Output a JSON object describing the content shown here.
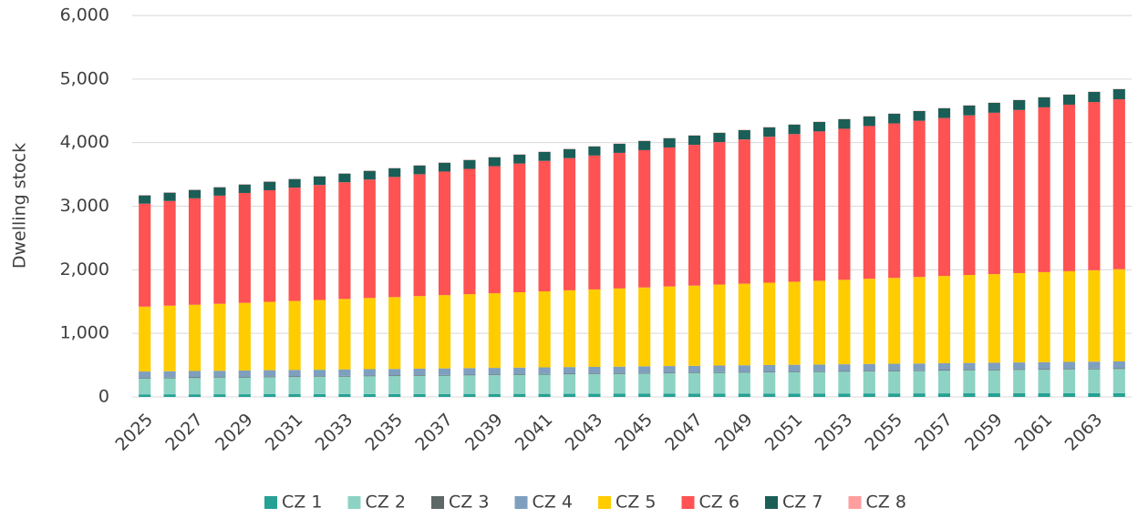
{
  "chart_data": {
    "type": "stacked_bar",
    "ylabel": "Dwelling stock",
    "categories": [
      "2025",
      null,
      "2027",
      null,
      "2029",
      null,
      "2031",
      null,
      "2033",
      null,
      "2035",
      null,
      "2037",
      null,
      "2039",
      null,
      "2041",
      null,
      "2043",
      null,
      "2045",
      null,
      "2047",
      null,
      "2049",
      null,
      "2051",
      null,
      "2053",
      null,
      "2055",
      null,
      "2057",
      null,
      "2059",
      null,
      "2061",
      null,
      "2063",
      null
    ],
    "ylim": [
      0,
      6000
    ],
    "yticks": [
      0,
      {
        "value": 1000,
        "label": "1,000"
      },
      {
        "value": 2000,
        "label": "2,000"
      },
      {
        "value": 3000,
        "label": "3,000"
      },
      {
        "value": 4000,
        "label": "4,000"
      },
      {
        "value": 5000,
        "label": "5,000"
      },
      {
        "value": 6000,
        "label": "6,000"
      }
    ],
    "grid": true,
    "legend": "bottom",
    "series": [
      {
        "name": "CZ 1",
        "color": "#26a195",
        "values": [
          40,
          41,
          41,
          42,
          42,
          43,
          43,
          44,
          44,
          45,
          45,
          46,
          46,
          47,
          47,
          48,
          48,
          49,
          49,
          50,
          50,
          51,
          51,
          52,
          52,
          53,
          53,
          54,
          54,
          55,
          55,
          56,
          56,
          57,
          57,
          58,
          58,
          59,
          59,
          60
        ]
      },
      {
        "name": "CZ 2",
        "color": "#8dd3c4",
        "values": [
          250,
          253,
          257,
          260,
          263,
          267,
          270,
          273,
          277,
          280,
          283,
          287,
          290,
          293,
          297,
          300,
          303,
          307,
          310,
          313,
          317,
          320,
          323,
          327,
          330,
          333,
          337,
          340,
          343,
          347,
          350,
          353,
          357,
          360,
          363,
          367,
          370,
          373,
          377,
          380
        ]
      },
      {
        "name": "CZ 3",
        "color": "#5c6766",
        "values": [
          10,
          10,
          10,
          10,
          10,
          10,
          10,
          10,
          10,
          10,
          10,
          10,
          10,
          10,
          10,
          10,
          10,
          10,
          10,
          10,
          10,
          10,
          10,
          10,
          10,
          10,
          10,
          10,
          10,
          10,
          10,
          10,
          10,
          10,
          10,
          10,
          10,
          10,
          10,
          10
        ]
      },
      {
        "name": "CZ 4",
        "color": "#7f9fbf",
        "values": [
          100,
          100,
          100,
          100,
          101,
          101,
          101,
          101,
          102,
          102,
          102,
          102,
          103,
          103,
          103,
          103,
          104,
          104,
          104,
          104,
          105,
          105,
          105,
          105,
          106,
          106,
          106,
          106,
          107,
          107,
          107,
          107,
          108,
          108,
          108,
          108,
          109,
          109,
          109,
          109
        ]
      },
      {
        "name": "CZ 5",
        "color": "#ffcc00",
        "values": [
          1020,
          1031,
          1042,
          1053,
          1064,
          1075,
          1086,
          1097,
          1108,
          1119,
          1130,
          1141,
          1152,
          1163,
          1174,
          1185,
          1196,
          1207,
          1218,
          1229,
          1240,
          1251,
          1262,
          1273,
          1284,
          1295,
          1306,
          1317,
          1328,
          1339,
          1350,
          1361,
          1372,
          1383,
          1394,
          1405,
          1416,
          1427,
          1438,
          1449
        ]
      },
      {
        "name": "CZ 6",
        "color": "#ff5252",
        "values": [
          1620,
          1647,
          1674,
          1701,
          1728,
          1755,
          1782,
          1809,
          1836,
          1863,
          1890,
          1917,
          1944,
          1971,
          1998,
          2025,
          2052,
          2079,
          2106,
          2133,
          2160,
          2187,
          2214,
          2241,
          2268,
          2295,
          2322,
          2349,
          2376,
          2403,
          2430,
          2457,
          2484,
          2511,
          2538,
          2565,
          2592,
          2619,
          2646,
          2673
        ]
      },
      {
        "name": "CZ 7",
        "color": "#1b5e57",
        "values": [
          130,
          131,
          132,
          132,
          133,
          134,
          135,
          135,
          136,
          137,
          138,
          138,
          139,
          140,
          141,
          141,
          142,
          143,
          144,
          144,
          145,
          146,
          147,
          147,
          148,
          149,
          150,
          150,
          151,
          152,
          153,
          153,
          154,
          155,
          156,
          156,
          157,
          158,
          159,
          160
        ]
      },
      {
        "name": "CZ 8",
        "color": "#ff9e9e",
        "values": [
          5,
          5,
          5,
          5,
          5,
          5,
          5,
          5,
          5,
          5,
          5,
          5,
          5,
          5,
          5,
          5,
          5,
          5,
          5,
          5,
          5,
          5,
          5,
          5,
          5,
          5,
          5,
          5,
          5,
          5,
          5,
          5,
          5,
          5,
          5,
          5,
          5,
          5,
          5,
          5
        ]
      }
    ]
  }
}
